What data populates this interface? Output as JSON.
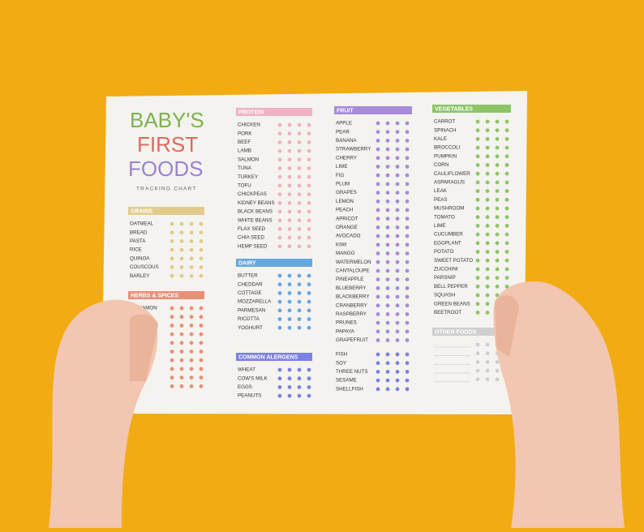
{
  "title_lines": [
    "BABY'S",
    "FIRST",
    "FOODS"
  ],
  "subtitle": "TRACKING CHART",
  "sections": [
    {
      "title": "GRAINS",
      "color": "#e2cc8c",
      "items": [
        "OATMEAL",
        "BREAD",
        "PASTA",
        "RICE",
        "QUINOA",
        "COUSCOUS",
        "BARLEY"
      ]
    },
    {
      "title": "HERBS & SPICES",
      "color": "#e98f78",
      "items": [
        "CINNAMON"
      ]
    },
    {
      "title": "PROTEIN",
      "color": "#f0b2c2",
      "items": [
        "CHICKEN",
        "PORK",
        "BEEF",
        "LAMB",
        "SALMON",
        "TUNA",
        "TURKEY",
        "TOFU",
        "CHICKPEAS",
        "KIDNEY BEANS",
        "BLACK BEANS",
        "WHITE BEANS",
        "FLAX SEED",
        "CHIA SEED",
        "HEMP SEED"
      ]
    },
    {
      "title": "DAIRY",
      "color": "#67a7e1",
      "items": [
        "BUTTER",
        "CHEDDAR",
        "COTTAGE",
        "MOZZARELLA",
        "PARMESAN",
        "RICOTTA",
        "YOGHURT"
      ]
    },
    {
      "title": "COMMON ALERGENS",
      "color": "#7c80e2",
      "items": [
        "WHEAT",
        "COW'S MILK",
        "EGGS",
        "PEANUTS",
        "FISH",
        "SOY",
        "THREE NUTS",
        "SESAME",
        "SHELLFISH"
      ]
    },
    {
      "title": "FRUIT",
      "color": "#a68bd9",
      "items": [
        "APPLE",
        "PEAR",
        "BANANA",
        "STRAWBERRY",
        "CHERRY",
        "LIME",
        "FIG",
        "PLUM",
        "GRAPES",
        "LEMON",
        "PEACH",
        "APRICOT",
        "ORANGE",
        "AVOCADO",
        "KIWI",
        "MANGO",
        "WATERMELON",
        "CANTALOUPE",
        "PINEAPPLE",
        "BLUEBERRY",
        "BLACKBERRY",
        "CRANBERRY",
        "RASPBERRY",
        "PRUNES",
        "PAPAYA",
        "GRAPEFRUIT"
      ]
    },
    {
      "title": "VEGETABLES",
      "color": "#8cc565",
      "items": [
        "CARROT",
        "SPINACH",
        "KALE",
        "BROCCOLI",
        "PUMPKIN",
        "CORN",
        "CAULIFLOWER",
        "ASPARAGUS",
        "LEAK",
        "PEAS",
        "MUSHROOM",
        "TOMATO",
        "LIME",
        "CUCUMBER",
        "EGGPLANT",
        "POTATO",
        "SWEET POTATO",
        "ZUCCHINI",
        "PARSNIP",
        "BELL PEPPER",
        "SQUASH",
        "GREEN BEANS",
        "BEETROOT"
      ]
    },
    {
      "title": "OTHER FOODS",
      "color": "#cfcfcf",
      "items": []
    }
  ]
}
